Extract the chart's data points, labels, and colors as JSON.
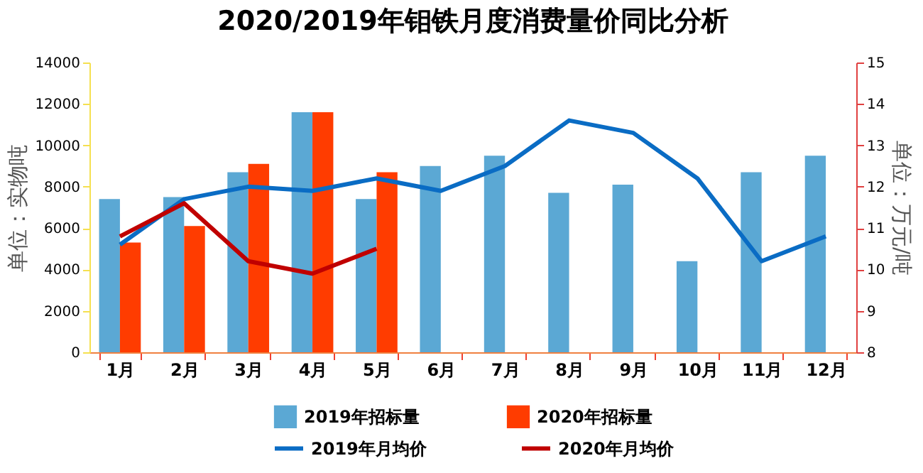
{
  "chart_data": {
    "type": "bar",
    "title": "2020/2019年钼铁月度消费量价同比分析",
    "ylabel": "单位：实物吨",
    "y2label": "单位：万元/吨",
    "categories": [
      "1月",
      "2月",
      "3月",
      "4月",
      "5月",
      "6月",
      "7月",
      "8月",
      "9月",
      "10月",
      "11月",
      "12月"
    ],
    "series": [
      {
        "name": "2019年招标量",
        "color": "#5ba8d4",
        "values": [
          7400,
          7500,
          8700,
          11600,
          7400,
          9000,
          9500,
          7700,
          8100,
          4400,
          8700,
          9500
        ]
      },
      {
        "name": "2020年招标量",
        "color": "#ff3c00",
        "values": [
          5300,
          6100,
          9100,
          11600,
          8700,
          null,
          null,
          null,
          null,
          null,
          null,
          null
        ]
      },
      {
        "name": "2019年月均价",
        "type": "line",
        "axis": "y2",
        "color": "#0a6cc4",
        "values": [
          10.6,
          11.7,
          12.0,
          11.9,
          12.2,
          11.9,
          12.5,
          13.6,
          13.3,
          12.2,
          10.2,
          10.8
        ]
      },
      {
        "name": "2020年月均价",
        "type": "line",
        "axis": "y2",
        "color": "#c00000",
        "values": [
          10.8,
          11.6,
          10.2,
          9.9,
          10.5,
          null,
          null,
          null,
          null,
          null,
          null,
          null
        ]
      }
    ],
    "ylim": [
      0,
      14000
    ],
    "yticks": [
      0,
      2000,
      4000,
      6000,
      8000,
      10000,
      12000,
      14000
    ],
    "y2lim": [
      8,
      15
    ],
    "y2ticks": [
      8,
      9,
      10,
      11,
      12,
      13,
      14,
      15
    ],
    "grid": false,
    "legend": "bottom",
    "marker": "none"
  }
}
